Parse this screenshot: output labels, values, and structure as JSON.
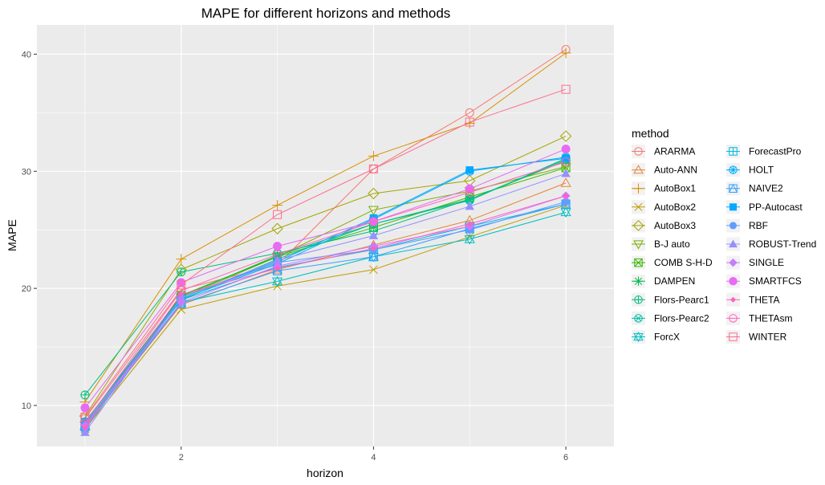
{
  "chart_data": {
    "type": "line",
    "title": "MAPE for different horizons and methods",
    "xlabel": "horizon",
    "ylabel": "MAPE",
    "x": [
      1,
      2,
      3,
      4,
      5,
      6
    ],
    "xlim": [
      0.5,
      6.5
    ],
    "ylim": [
      6.5,
      42.5
    ],
    "x_ticks": [
      2,
      4,
      6
    ],
    "y_ticks": [
      10,
      20,
      30,
      40
    ],
    "grid": true,
    "legend": {
      "title": "method",
      "placement": "right",
      "columns": 2
    },
    "series": [
      {
        "name": "ARARMA",
        "color": "#F8766D",
        "shape": "circle-open",
        "values": [
          8.9,
          19.9,
          22.0,
          30.2,
          35.0,
          40.4
        ]
      },
      {
        "name": "Auto-ANN",
        "color": "#EA8331",
        "shape": "triangle-open",
        "values": [
          8.2,
          18.6,
          21.6,
          23.7,
          25.8,
          29.0
        ]
      },
      {
        "name": "AutoBox1",
        "color": "#D89000",
        "shape": "plus",
        "values": [
          10.3,
          22.5,
          27.1,
          31.3,
          34.1,
          40.1
        ]
      },
      {
        "name": "AutoBox2",
        "color": "#C09B00",
        "shape": "x",
        "values": [
          8.0,
          18.2,
          20.2,
          21.6,
          24.4,
          27.1
        ]
      },
      {
        "name": "AutoBox3",
        "color": "#A3A500",
        "shape": "diamond-open",
        "values": [
          9.1,
          21.6,
          25.1,
          28.1,
          29.2,
          33.0
        ]
      },
      {
        "name": "B-J auto",
        "color": "#7CAE00",
        "shape": "triangle-down-open",
        "values": [
          8.3,
          19.2,
          22.7,
          26.7,
          28.3,
          30.4
        ]
      },
      {
        "name": "COMB S-H-D",
        "color": "#39B600",
        "shape": "square-x",
        "values": [
          8.5,
          19.4,
          22.7,
          25.2,
          27.8,
          30.3
        ]
      },
      {
        "name": "DAMPEN",
        "color": "#00BB4E",
        "shape": "asterisk",
        "values": [
          8.6,
          19.3,
          22.8,
          25.5,
          27.6,
          30.9
        ]
      },
      {
        "name": "Flors-Pearc1",
        "color": "#00BF7D",
        "shape": "circle-plus",
        "values": [
          10.9,
          21.4,
          23.0,
          24.9,
          27.6,
          31.0
        ]
      },
      {
        "name": "Flors-Pearc2",
        "color": "#00C1A3",
        "shape": "circle-x",
        "values": [
          8.6,
          19.0,
          22.5,
          25.5,
          27.5,
          31.1
        ]
      },
      {
        "name": "ForcX",
        "color": "#00BFC4",
        "shape": "star-of-david",
        "values": [
          8.3,
          18.8,
          20.6,
          22.7,
          24.2,
          26.5
        ]
      },
      {
        "name": "ForecastPro",
        "color": "#00BAE0",
        "shape": "square-plus",
        "values": [
          8.4,
          19.0,
          21.8,
          23.3,
          25.3,
          27.2
        ]
      },
      {
        "name": "HOLT",
        "color": "#00B0F6",
        "shape": "circle-asterisk",
        "values": [
          8.0,
          19.1,
          22.1,
          25.9,
          30.0,
          31.2
        ]
      },
      {
        "name": "NAIVE2",
        "color": "#35A2FF",
        "shape": "square-triangle",
        "values": [
          8.2,
          18.7,
          21.5,
          22.7,
          25.1,
          27.2
        ]
      },
      {
        "name": "PP-Autocast",
        "color": "#00A9FF",
        "shape": "square-filled",
        "values": [
          8.6,
          19.2,
          22.3,
          26.0,
          30.1,
          31.1
        ]
      },
      {
        "name": "RBF",
        "color": "#619CFF",
        "shape": "circle-filled",
        "values": [
          8.0,
          19.2,
          22.2,
          23.3,
          25.0,
          27.4
        ]
      },
      {
        "name": "ROBUST-Trend",
        "color": "#9590FF",
        "shape": "triangle-filled",
        "values": [
          7.7,
          19.2,
          22.4,
          24.5,
          27.0,
          29.8
        ]
      },
      {
        "name": "SINGLE",
        "color": "#C77CFF",
        "shape": "diamond-filled",
        "values": [
          8.3,
          18.8,
          21.9,
          23.6,
          25.3,
          27.9
        ]
      },
      {
        "name": "SMARTFCS",
        "color": "#E76BF3",
        "shape": "circle-filled-big",
        "values": [
          9.8,
          20.5,
          23.6,
          25.7,
          28.5,
          31.9
        ]
      },
      {
        "name": "THETA",
        "color": "#FF61C3",
        "shape": "diamond-small",
        "values": [
          8.1,
          19.5,
          21.7,
          23.4,
          25.5,
          27.9
        ]
      },
      {
        "name": "THETAsm",
        "color": "#FF62BC",
        "shape": "circle-open",
        "values": [
          8.5,
          19.8,
          22.9,
          25.7,
          28.2,
          30.8
        ]
      },
      {
        "name": "WINTER",
        "color": "#FF6C91",
        "shape": "square-open",
        "values": [
          9.0,
          20.3,
          26.3,
          30.2,
          34.2,
          37.0
        ]
      }
    ]
  }
}
